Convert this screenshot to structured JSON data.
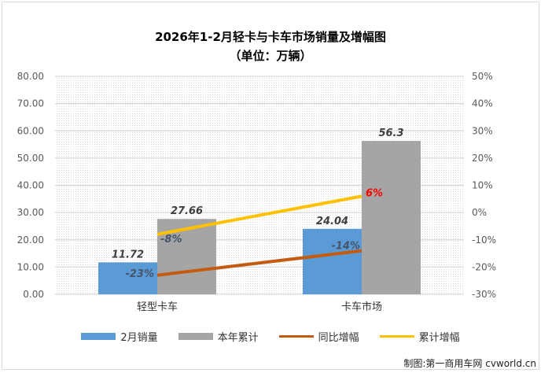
{
  "chart_data": {
    "type": "bar+line",
    "title": "2026年1-2月轻卡与卡车市场销量及增幅图",
    "subtitle": "（单位：万辆）",
    "categories": [
      "轻型卡车",
      "卡车市场"
    ],
    "series": [
      {
        "name": "2月销量",
        "type": "bar",
        "axis": "left",
        "values": [
          11.72,
          24.04
        ],
        "labels": [
          "11.72",
          "24.04"
        ],
        "color": "#5b9bd5"
      },
      {
        "name": "本年累计",
        "type": "bar",
        "axis": "left",
        "values": [
          27.66,
          56.3
        ],
        "labels": [
          "27.66",
          "56.3"
        ],
        "color": "#a5a5a5"
      },
      {
        "name": "同比增幅",
        "type": "line",
        "axis": "right",
        "values": [
          -23,
          -14
        ],
        "labels": [
          "-23%",
          "-14%"
        ],
        "color": "#c55a11"
      },
      {
        "name": "累计增幅",
        "type": "line",
        "axis": "right",
        "values": [
          -8,
          6
        ],
        "labels": [
          "-8%",
          "6%"
        ],
        "color": "#ffc000"
      }
    ],
    "left_axis": {
      "range": [
        0,
        80
      ],
      "ticks": [
        "0.00",
        "10.00",
        "20.00",
        "30.00",
        "40.00",
        "50.00",
        "60.00",
        "70.00",
        "80.00"
      ]
    },
    "right_axis": {
      "range": [
        -30,
        50
      ],
      "ticks": [
        "-30%",
        "-20%",
        "-10%",
        "0%",
        "10%",
        "20%",
        "30%",
        "40%",
        "50%"
      ]
    },
    "grid": true,
    "legend": "bottom",
    "highlight_label_color": "#ff0000"
  },
  "watermark": "制图:第一商用车网 cvworld.cn"
}
